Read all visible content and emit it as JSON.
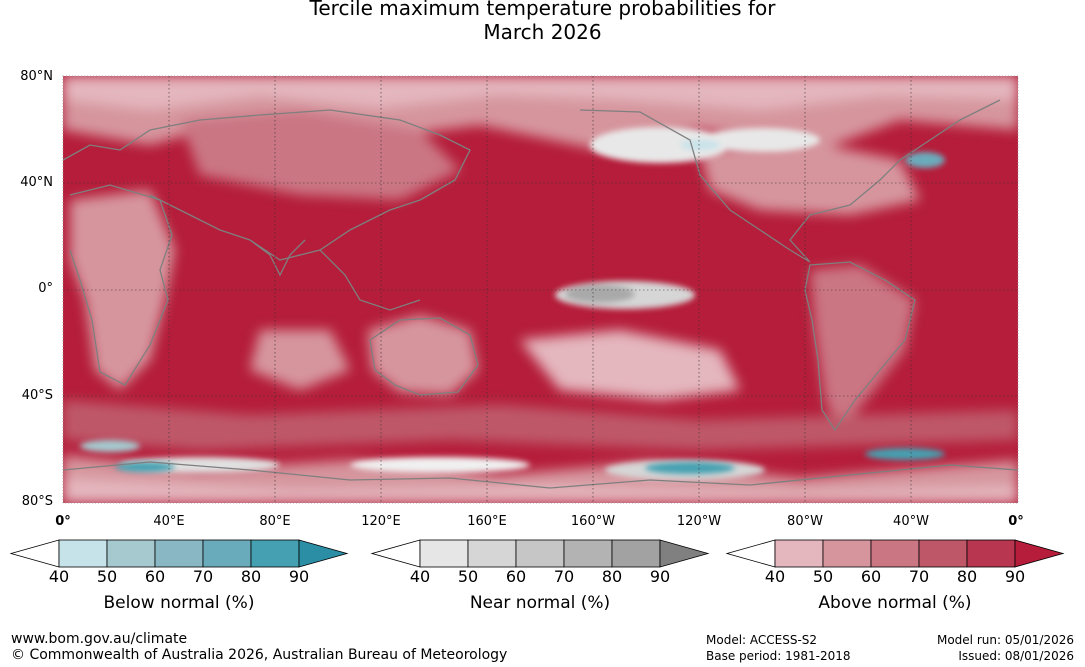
{
  "title_line1": "Tercile maximum temperature probabilities for",
  "title_line2": "March 2026",
  "lat_labels": [
    "80°N",
    "40°N",
    "0°",
    "40°S",
    "80°S"
  ],
  "lon_labels": [
    "0°",
    "40°E",
    "80°E",
    "120°E",
    "160°E",
    "160°W",
    "120°W",
    "80°W",
    "40°W",
    "0°"
  ],
  "colorbars": [
    {
      "name": "Below normal (%)",
      "ticks": [
        "40",
        "50",
        "60",
        "70",
        "80",
        "90"
      ],
      "colors": [
        "#ffffff",
        "#c7e3ea",
        "#a6c9cf",
        "#89b7c3",
        "#6aabbb",
        "#45a0b1",
        "#2b8ea4"
      ]
    },
    {
      "name": "Near normal (%)",
      "ticks": [
        "40",
        "50",
        "60",
        "70",
        "80",
        "90"
      ],
      "colors": [
        "#ffffff",
        "#e6e6e6",
        "#d6d6d6",
        "#c6c6c6",
        "#b3b3b3",
        "#a2a2a2",
        "#808080"
      ]
    },
    {
      "name": "Above normal (%)",
      "ticks": [
        "40",
        "50",
        "60",
        "70",
        "80",
        "90"
      ],
      "colors": [
        "#ffffff",
        "#e4b6bd",
        "#d6959d",
        "#ca7683",
        "#be5869",
        "#b8364f",
        "#b51d3a"
      ]
    }
  ],
  "footer": {
    "url": "www.bom.gov.au/climate",
    "copyright": "© Commonwealth of Australia 2026, Australian Bureau of Meteorology",
    "model": "Model: ACCESS-S2",
    "base_period": "Base period: 1981-2018",
    "model_run": "Model run: 05/01/2026",
    "issued": "Issued: 08/01/2026"
  },
  "map_colors": {
    "ocean_strong": "#b51d3a",
    "warm_mid": "#c44a5f",
    "warm_light": "#d6959d",
    "warm_pale": "#e4b6bd",
    "near_grey": "#a9a9a9",
    "near_light": "#d6d6d6",
    "below_teal": "#45a0b1",
    "coast": "#7f7f7f"
  }
}
